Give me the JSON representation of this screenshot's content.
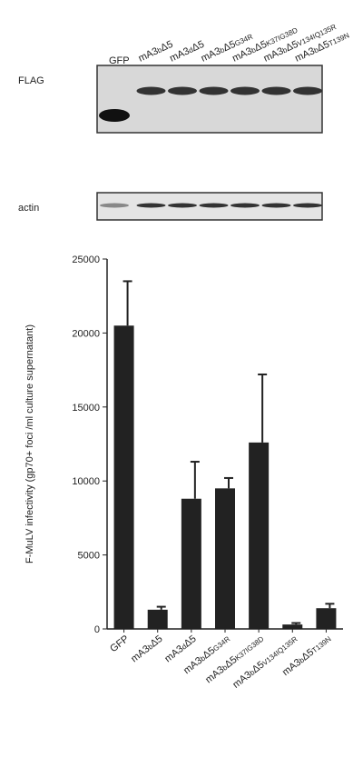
{
  "chart_data": {
    "type": "bar",
    "ylabel": "F-MuLV infectivity (gp70+ foci /ml culture supernatant)",
    "categories": [
      "GFP",
      "mA3bΔ5",
      "mA3dΔ5",
      "mA3bΔ5G34R",
      "mA3bΔ5K37IG38D",
      "mA3bΔ5V134IQ135R",
      "mA3bΔ5T139N"
    ],
    "values": [
      20500,
      1300,
      8800,
      9500,
      12600,
      300,
      1400
    ],
    "errors": [
      3000,
      200,
      2500,
      700,
      4600,
      100,
      300
    ],
    "color": "#222222",
    "ylim": [
      0,
      25000
    ],
    "yticks": [
      0,
      5000,
      10000,
      15000,
      20000,
      25000
    ],
    "blot_rows": [
      "FLAG",
      "actin"
    ]
  }
}
